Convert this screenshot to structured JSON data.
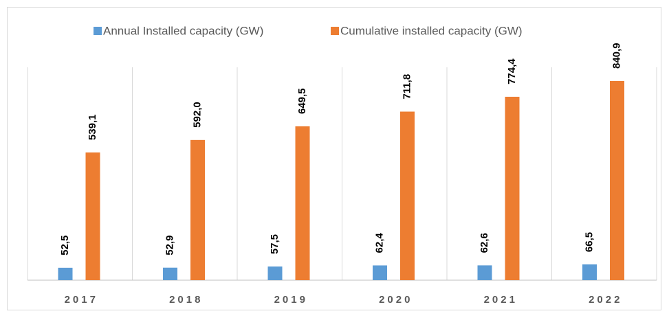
{
  "chart_data": {
    "type": "bar",
    "categories": [
      "2017",
      "2018",
      "2019",
      "2020",
      "2021",
      "2022"
    ],
    "series": [
      {
        "name": "Annual Installed capacity (GW)",
        "color": "#5b9bd5",
        "values": [
          52.5,
          52.9,
          57.5,
          62.4,
          62.6,
          66.5
        ],
        "value_labels": [
          "52,5",
          "52,9",
          "57,5",
          "62,4",
          "62,6",
          "66,5"
        ]
      },
      {
        "name": "Cumulative installed capacity (GW)",
        "color": "#ed7d31",
        "values": [
          539.1,
          592.0,
          649.5,
          711.8,
          774.4,
          840.9
        ],
        "value_labels": [
          "539,1",
          "592,0",
          "649,5",
          "711,8",
          "774,4",
          "840,9"
        ]
      }
    ],
    "legend": "top",
    "grid": true
  }
}
